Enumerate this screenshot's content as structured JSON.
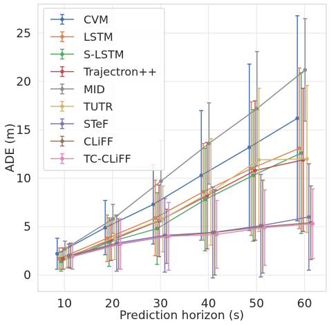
{
  "chart_data": {
    "type": "line",
    "xlabel": "Prediction horizon (s)",
    "ylabel": "ADE (m)",
    "x_ticks": [
      10,
      20,
      30,
      40,
      50,
      60
    ],
    "y_ticks": [
      0,
      5,
      10,
      15,
      20,
      25
    ],
    "xlim": [
      4.5,
      64.5
    ],
    "ylim": [
      -1.7,
      28.0
    ],
    "grid": true,
    "error_bars": true,
    "legend_position": "top-left",
    "series": [
      {
        "name": "CVM",
        "color": "#4c72b0",
        "offset": -1.5,
        "x": [
          10,
          20,
          30,
          40,
          50,
          60
        ],
        "y": [
          2.2,
          4.9,
          7.3,
          10.3,
          13.2,
          16.2
        ],
        "err": [
          1.6,
          2.8,
          4.1,
          6.7,
          8.6,
          10.6
        ]
      },
      {
        "name": "LSTM",
        "color": "#dd8452",
        "offset": -1.1,
        "x": [
          10,
          20,
          30,
          40,
          50,
          60
        ],
        "y": [
          1.7,
          3.8,
          5.9,
          8.6,
          11.0,
          13.1
        ],
        "err": [
          1.1,
          2.4,
          3.9,
          5.0,
          6.9,
          8.3
        ]
      },
      {
        "name": "S-LSTM",
        "color": "#55a868",
        "offset": -0.7,
        "x": [
          10,
          20,
          30,
          40,
          50,
          60
        ],
        "y": [
          1.4,
          3.4,
          4.8,
          7.8,
          10.3,
          12.6
        ],
        "err": [
          1.0,
          2.5,
          3.7,
          5.3,
          6.8,
          8.3
        ]
      },
      {
        "name": "Trajectron++",
        "color": "#c44e52",
        "offset": -0.3,
        "x": [
          10,
          20,
          30,
          40,
          50,
          60
        ],
        "y": [
          1.7,
          3.6,
          5.6,
          8.2,
          10.8,
          11.9
        ],
        "err": [
          1.1,
          2.1,
          3.7,
          5.5,
          7.2,
          7.4
        ]
      },
      {
        "name": "MID",
        "color": "#8c8c8c",
        "offset": 0.1,
        "x": [
          10,
          20,
          30,
          40,
          50,
          60
        ],
        "y": [
          2.7,
          5.8,
          9.7,
          13.6,
          17.2,
          21.2
        ],
        "err": [
          0.8,
          1.5,
          4.2,
          4.2,
          5.9,
          5.3
        ]
      },
      {
        "name": "TUTR",
        "color": "#ccb974",
        "offset": 0.5,
        "x": [
          10,
          20,
          30,
          40,
          50,
          60
        ],
        "y": [
          1.8,
          3.9,
          5.8,
          8.6,
          11.9,
          12.0
        ],
        "err": [
          1.1,
          2.3,
          3.4,
          5.5,
          7.4,
          7.6
        ]
      },
      {
        "name": "STeF",
        "color": "#8172b3",
        "offset": 0.9,
        "x": [
          10,
          20,
          30,
          40,
          50,
          60
        ],
        "y": [
          2.0,
          3.3,
          4.1,
          4.4,
          5.1,
          6.0
        ],
        "err": [
          1.2,
          2.9,
          3.8,
          4.7,
          5.3,
          5.5
        ]
      },
      {
        "name": "CLiFF",
        "color": "#937860",
        "offset": 1.3,
        "x": [
          10,
          20,
          30,
          40,
          50,
          60
        ],
        "y": [
          2.0,
          3.2,
          4.0,
          4.4,
          5.0,
          5.4
        ],
        "err": [
          1.3,
          2.6,
          2.8,
          4.4,
          4.8,
          3.8
        ]
      },
      {
        "name": "TC-CLiFF",
        "color": "#da8bc3",
        "offset": 1.7,
        "x": [
          10,
          20,
          30,
          40,
          50,
          60
        ],
        "y": [
          1.9,
          3.2,
          4.0,
          4.2,
          4.9,
          5.3
        ],
        "err": [
          1.3,
          2.6,
          3.5,
          3.5,
          3.9,
          3.6
        ]
      }
    ]
  }
}
